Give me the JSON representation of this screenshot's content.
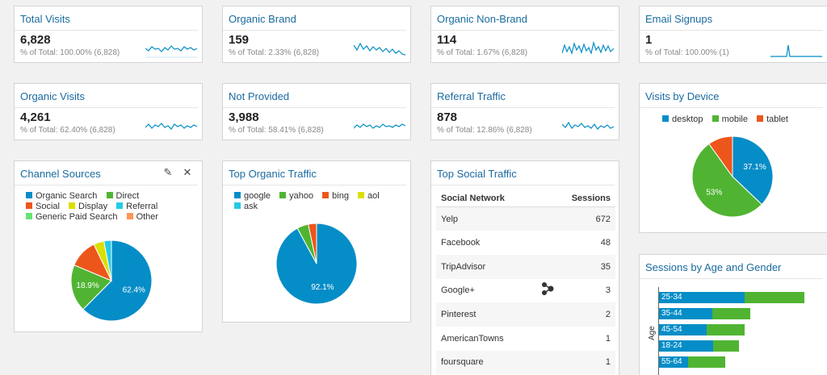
{
  "colors": {
    "blue": "#058dc7",
    "green": "#50b432",
    "orange": "#ed561b",
    "yellow": "#dddf00",
    "cyan": "#24cbe5",
    "lightgreen": "#64e572",
    "peach": "#ff9655",
    "title": "#1a6b9f"
  },
  "metrics": [
    {
      "title": "Total Visits",
      "value": "6,828",
      "sub": "% of Total: 100.00% (6,828)"
    },
    {
      "title": "Organic Brand",
      "value": "159",
      "sub": "% of Total: 2.33% (6,828)"
    },
    {
      "title": "Organic Non-Brand",
      "value": "114",
      "sub": "% of Total: 1.67% (6,828)"
    },
    {
      "title": "Email Signups",
      "value": "1",
      "sub": "% of Total: 100.00% (1)"
    },
    {
      "title": "Organic Visits",
      "value": "4,261",
      "sub": "% of Total: 62.40% (6,828)"
    },
    {
      "title": "Not Provided",
      "value": "3,988",
      "sub": "% of Total: 58.41% (6,828)"
    },
    {
      "title": "Referral Traffic",
      "value": "878",
      "sub": "% of Total: 12.86% (6,828)"
    }
  ],
  "device": {
    "title": "Visits by Device",
    "legend": [
      "desktop",
      "mobile",
      "tablet"
    ],
    "slices": [
      {
        "name": "desktop",
        "value": 37.1,
        "label": "37.1%",
        "color": "#058dc7"
      },
      {
        "name": "mobile",
        "value": 53,
        "label": "53%",
        "color": "#50b432"
      },
      {
        "name": "tablet",
        "value": 9.9,
        "label": "",
        "color": "#ed561b"
      }
    ]
  },
  "channels": {
    "title": "Channel Sources",
    "legend": [
      "Organic Search",
      "Direct",
      "Social",
      "Display",
      "Referral",
      "Generic Paid Search",
      "Other"
    ],
    "slices": [
      {
        "name": "Organic Search",
        "value": 62.4,
        "label": "62.4%",
        "color": "#058dc7"
      },
      {
        "name": "Direct",
        "value": 18.9,
        "label": "18.9%",
        "color": "#50b432"
      },
      {
        "name": "Social",
        "value": 11.5,
        "label": "",
        "color": "#ed561b"
      },
      {
        "name": "Display",
        "value": 4.2,
        "label": "",
        "color": "#dddf00"
      },
      {
        "name": "Referral",
        "value": 3.0,
        "label": "",
        "color": "#24cbe5"
      }
    ]
  },
  "organic": {
    "title": "Top Organic Traffic",
    "legend": [
      "google",
      "yahoo",
      "bing",
      "aol",
      "ask"
    ],
    "slices": [
      {
        "name": "google",
        "value": 92.1,
        "label": "92.1%",
        "color": "#058dc7"
      },
      {
        "name": "yahoo",
        "value": 4.6,
        "label": "",
        "color": "#50b432"
      },
      {
        "name": "bing",
        "value": 3.3,
        "label": "",
        "color": "#ed561b"
      }
    ]
  },
  "social": {
    "title": "Top Social Traffic",
    "headers": [
      "Social Network",
      "Sessions"
    ],
    "rows": [
      [
        "Yelp",
        "672"
      ],
      [
        "Facebook",
        "48"
      ],
      [
        "TripAdvisor",
        "35"
      ],
      [
        "Google+",
        "3"
      ],
      [
        "Pinterest",
        "2"
      ],
      [
        "AmericanTowns",
        "1"
      ],
      [
        "foursquare",
        "1"
      ]
    ]
  },
  "age": {
    "title": "Sessions by Age and Gender",
    "ylabel": "Age",
    "bars": [
      {
        "label": "25-34",
        "blue": 106,
        "green": 74
      },
      {
        "label": "35-44",
        "blue": 66,
        "green": 47
      },
      {
        "label": "45-54",
        "blue": 59,
        "green": 47
      },
      {
        "label": "18-24",
        "blue": 67,
        "green": 32
      },
      {
        "label": "55-64",
        "blue": 36,
        "green": 46
      }
    ]
  }
}
